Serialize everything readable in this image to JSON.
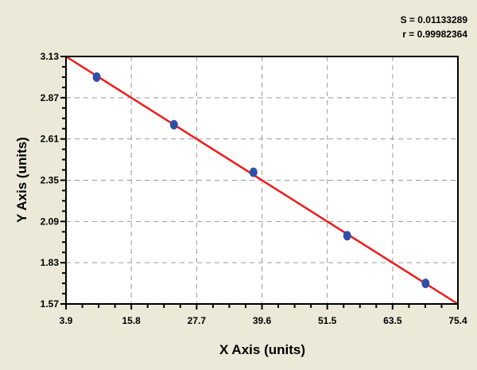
{
  "stats": {
    "s_label": "S = 0.01133289",
    "r_label": "r = 0.99982364"
  },
  "chart_data": {
    "type": "scatter",
    "title": "",
    "xlabel": "X Axis (units)",
    "ylabel": "Y Axis (units)",
    "xlim": [
      3.9,
      75.4
    ],
    "ylim": [
      1.57,
      3.13
    ],
    "x_ticks": [
      "3.9",
      "15.8",
      "27.7",
      "39.6",
      "51.5",
      "63.5",
      "75.4"
    ],
    "y_ticks": [
      "3.13",
      "2.87",
      "2.61",
      "2.35",
      "2.09",
      "1.83",
      "1.57"
    ],
    "grid": true,
    "points": {
      "x": [
        9.5,
        23.6,
        38.1,
        55.2,
        69.5
      ],
      "y": [
        3.0,
        2.7,
        2.4,
        2.0,
        1.7
      ]
    },
    "fit_line": {
      "x": [
        3.9,
        75.4
      ],
      "y": [
        3.13,
        1.57
      ]
    },
    "colors": {
      "points": "#2f4fa8",
      "fit_line": "#ee1c1c",
      "background": "#ece9d8",
      "plot": "#ffffff"
    }
  }
}
